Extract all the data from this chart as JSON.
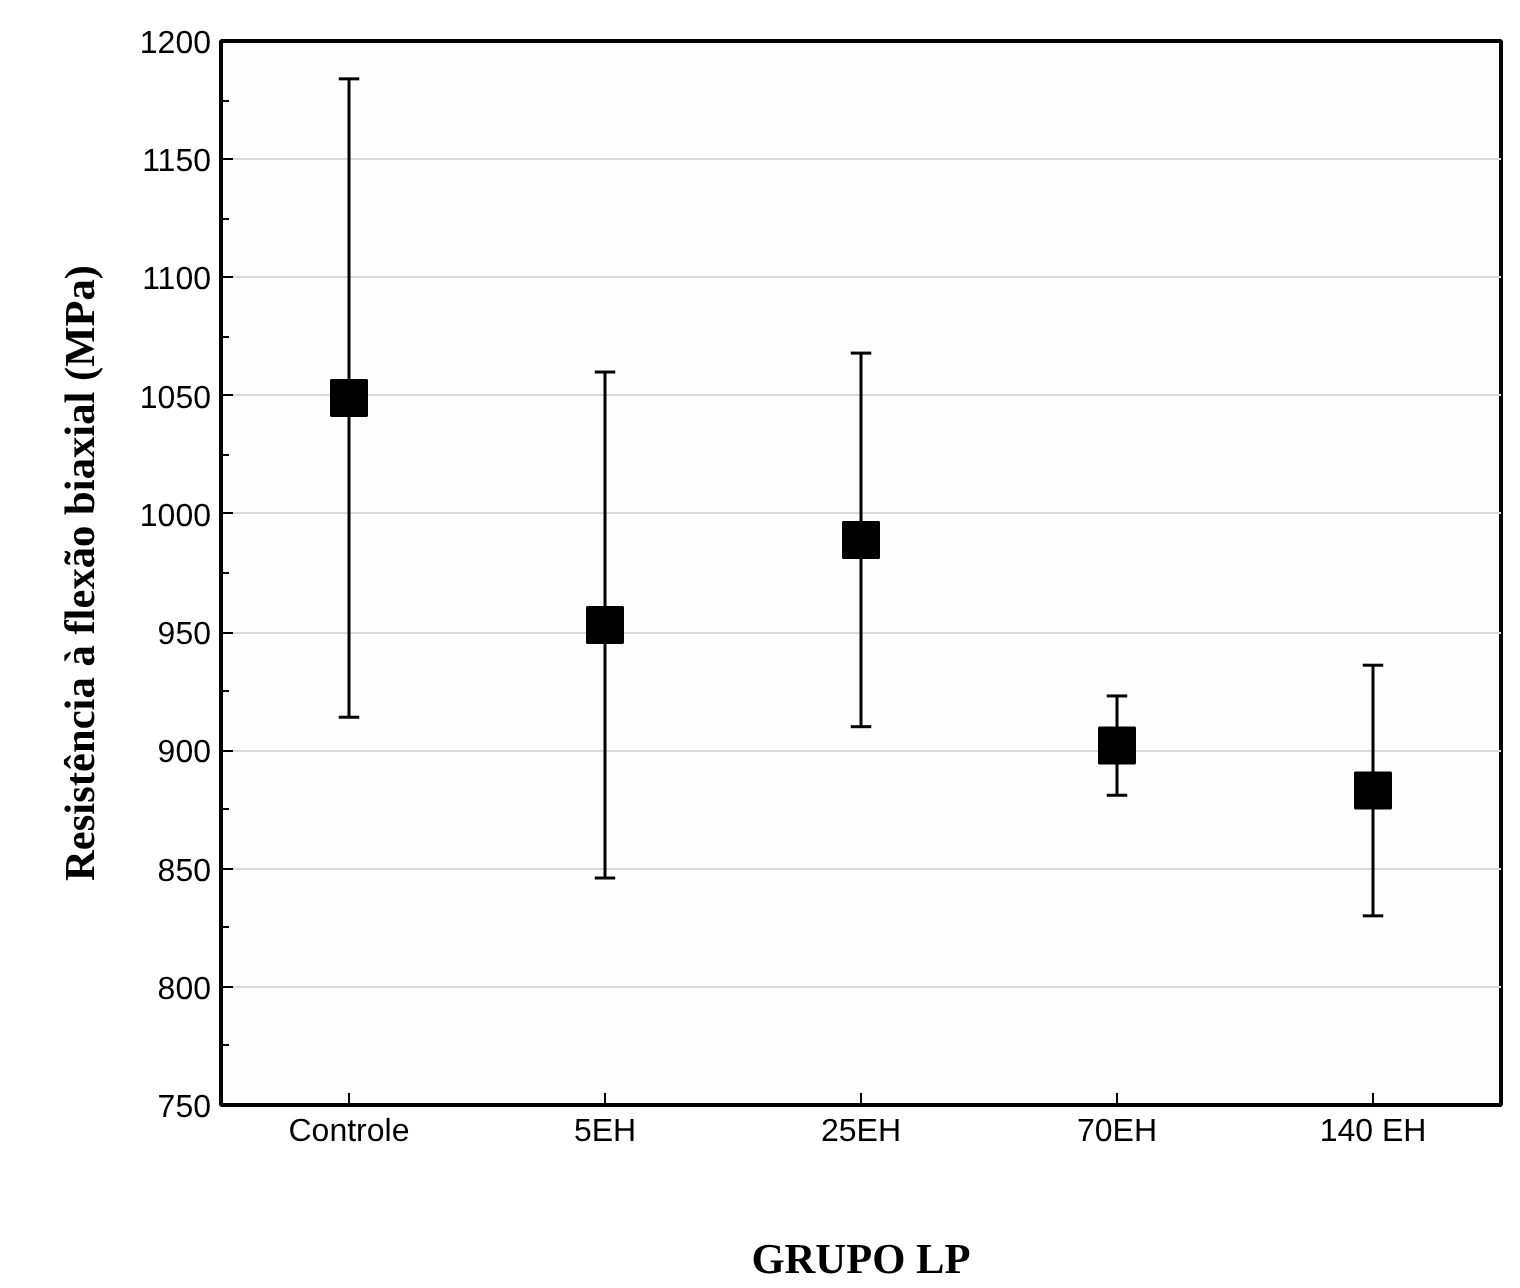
{
  "chart_data": {
    "type": "scatter",
    "xlabel": "GRUPO LP",
    "ylabel": "Resistência à flexão biaxial (MPa)",
    "categories": [
      "Controle",
      "5EH",
      "25EH",
      "70EH",
      "140 EH"
    ],
    "values": [
      1049,
      953,
      989,
      902,
      883
    ],
    "errors": [
      135,
      107,
      79,
      21,
      53
    ],
    "color": "#000000",
    "marker": "square",
    "ylim": [
      750,
      1200
    ],
    "yticks": [
      750,
      800,
      850,
      900,
      950,
      1000,
      1050,
      1100,
      1150,
      1200
    ],
    "grid": "y"
  }
}
